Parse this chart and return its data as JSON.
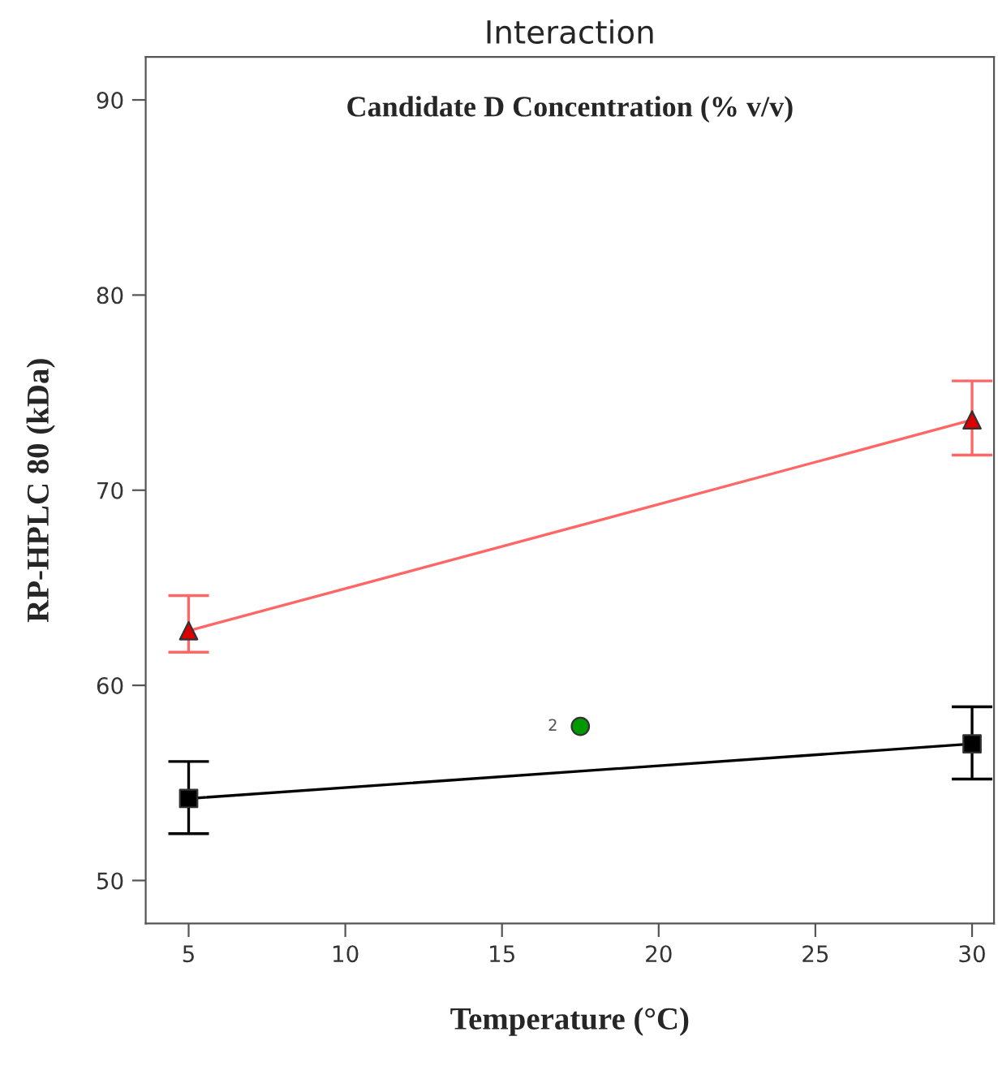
{
  "chart_data": {
    "type": "line",
    "title": "Interaction",
    "xlabel": "Temperature (°C)",
    "ylabel": "RP-HPLC 80 (kDa)",
    "xlim": [
      3.63,
      30.7
    ],
    "xticks": [
      5,
      10,
      15,
      20,
      25,
      30
    ],
    "ylim": [
      47.8,
      92.2
    ],
    "yticks": [
      50,
      60,
      70,
      80,
      90
    ],
    "grid": false,
    "legend": false,
    "series": [
      {
        "color": "#ff6666",
        "marker": "triangle",
        "x": [
          5,
          30
        ],
        "values": [
          62.8,
          73.6
        ],
        "errors": [
          [
            61.7,
            64.6
          ],
          [
            71.8,
            75.6
          ]
        ]
      },
      {
        "color": "#000000",
        "marker": "square",
        "x": [
          5,
          30
        ],
        "values": [
          54.2,
          57.0
        ],
        "errors": [
          [
            52.4,
            56.1
          ],
          [
            55.2,
            58.9
          ]
        ]
      },
      {
        "type": "scatter",
        "color": "#009900",
        "marker": "circle",
        "x": [
          17.5
        ],
        "values": [
          57.9
        ]
      }
    ],
    "annotations": [
      "Candidate D Concentration (% v/v)",
      {
        "text": "2",
        "x": 17.5,
        "y": 57.9
      }
    ]
  }
}
